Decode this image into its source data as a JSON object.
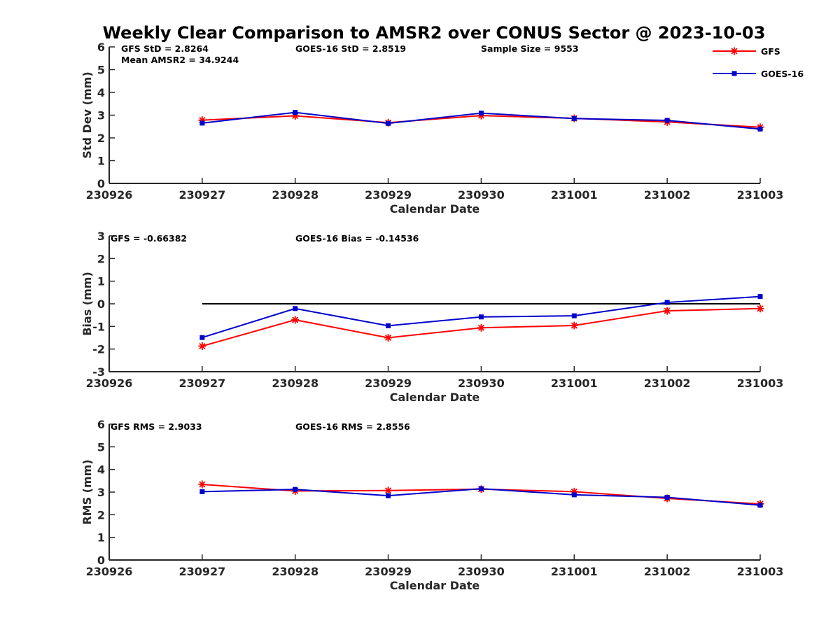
{
  "title": "Weekly Clear Comparison to AMSR2 over CONUS Sector @ 2023-10-03",
  "colors": {
    "gfs": "#ff0000",
    "goes16": "#0000cc",
    "zero_line": "#000000",
    "axis": "#262626"
  },
  "legend": {
    "placement": "top-right",
    "entries": [
      {
        "name": "GFS",
        "color": "#ff0000",
        "marker": "asterisk"
      },
      {
        "name": "GOES-16",
        "color": "#0000cc",
        "marker": "square"
      }
    ]
  },
  "chart_data": [
    {
      "type": "line",
      "xlabel": "Calendar Date",
      "ylabel": "Std Dev (mm)",
      "categories": [
        "230926",
        "230927",
        "230928",
        "230929",
        "230930",
        "231001",
        "231002",
        "231003"
      ],
      "yticks": [
        "0",
        "1",
        "2",
        "3",
        "4",
        "5",
        "6"
      ],
      "ylim": [
        0,
        6
      ],
      "grid": false,
      "annotations": [
        "GFS StD = 2.8264",
        "Mean AMSR2 = 34.9244",
        "GOES-16 StD = 2.8519",
        "Sample Size = 9553"
      ],
      "series": [
        {
          "name": "GFS",
          "x": [
            "230927",
            "230928",
            "230929",
            "230930",
            "231001",
            "231002",
            "231003"
          ],
          "values": [
            2.78,
            2.97,
            2.67,
            2.98,
            2.86,
            2.7,
            2.47
          ]
        },
        {
          "name": "GOES-16",
          "x": [
            "230927",
            "230928",
            "230929",
            "230930",
            "231001",
            "231002",
            "231003"
          ],
          "values": [
            2.65,
            3.12,
            2.64,
            3.09,
            2.85,
            2.77,
            2.39
          ]
        }
      ]
    },
    {
      "type": "line",
      "xlabel": "Calendar Date",
      "ylabel": "Bias (mm)",
      "categories": [
        "230926",
        "230927",
        "230928",
        "230929",
        "230930",
        "231001",
        "231002",
        "231003"
      ],
      "yticks": [
        "-3",
        "-2",
        "-1",
        "0",
        "1",
        "2",
        "3"
      ],
      "ylim": [
        -3,
        3
      ],
      "grid": false,
      "reference_line": {
        "y": 0,
        "x_from": "230927",
        "x_to": "231003"
      },
      "annotations": [
        "GFS = -0.66382",
        "GOES-16 Bias  = -0.14536"
      ],
      "series": [
        {
          "name": "GFS",
          "x": [
            "230927",
            "230928",
            "230929",
            "230930",
            "231001",
            "231002",
            "231003"
          ],
          "values": [
            -1.87,
            -0.71,
            -1.5,
            -1.06,
            -0.96,
            -0.31,
            -0.21
          ]
        },
        {
          "name": "GOES-16",
          "x": [
            "230927",
            "230928",
            "230929",
            "230930",
            "231001",
            "231002",
            "231003"
          ],
          "values": [
            -1.49,
            -0.21,
            -0.97,
            -0.58,
            -0.53,
            0.06,
            0.32
          ]
        }
      ]
    },
    {
      "type": "line",
      "xlabel": "Calendar Date",
      "ylabel": "RMS (mm)",
      "categories": [
        "230926",
        "230927",
        "230928",
        "230929",
        "230930",
        "231001",
        "231002",
        "231003"
      ],
      "yticks": [
        "0",
        "1",
        "2",
        "3",
        "4",
        "5",
        "6"
      ],
      "ylim": [
        0,
        6
      ],
      "grid": false,
      "annotations": [
        "GFS RMS = 2.9033",
        "GOES-16 RMS = 2.8556"
      ],
      "series": [
        {
          "name": "GFS",
          "x": [
            "230927",
            "230928",
            "230929",
            "230930",
            "231001",
            "231002",
            "231003"
          ],
          "values": [
            3.34,
            3.05,
            3.07,
            3.13,
            3.02,
            2.72,
            2.48
          ]
        },
        {
          "name": "GOES-16",
          "x": [
            "230927",
            "230928",
            "230929",
            "230930",
            "231001",
            "231002",
            "231003"
          ],
          "values": [
            3.02,
            3.12,
            2.84,
            3.15,
            2.88,
            2.77,
            2.42
          ]
        }
      ]
    }
  ]
}
